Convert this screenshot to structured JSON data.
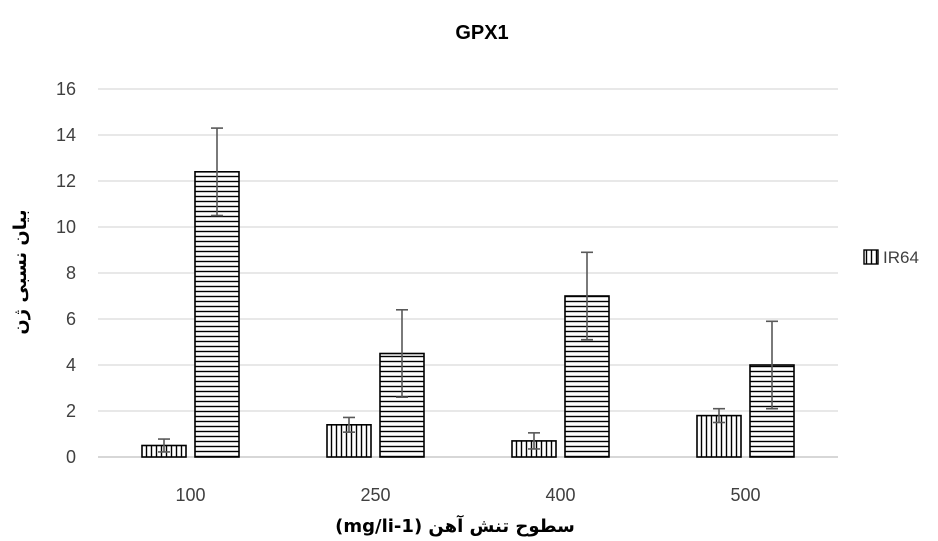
{
  "chart_data": {
    "type": "bar",
    "title": "GPX1",
    "xlabel": "سطوح تنش آهن (mg/li-1)",
    "ylabel": "بیان نسبی ژن",
    "categories": [
      "100",
      "250",
      "400",
      "500"
    ],
    "ylim": [
      0,
      16
    ],
    "ytick_step": 2,
    "grid": true,
    "legend_position": "right",
    "series": [
      {
        "name": "IR64",
        "pattern": "vertical-stripes",
        "values": [
          0.5,
          1.4,
          0.7,
          1.8
        ],
        "errors": [
          0.28,
          0.32,
          0.35,
          0.3
        ]
      },
      {
        "name": "",
        "pattern": "horizontal-stripes",
        "values": [
          12.4,
          4.5,
          7.0,
          4.0
        ],
        "errors": [
          1.9,
          1.9,
          1.9,
          1.9
        ]
      }
    ],
    "colors": {
      "bar_stroke": "#000000",
      "grid": "#d9d9d9",
      "error_bar": "#595959",
      "tick_text": "#404040"
    }
  }
}
